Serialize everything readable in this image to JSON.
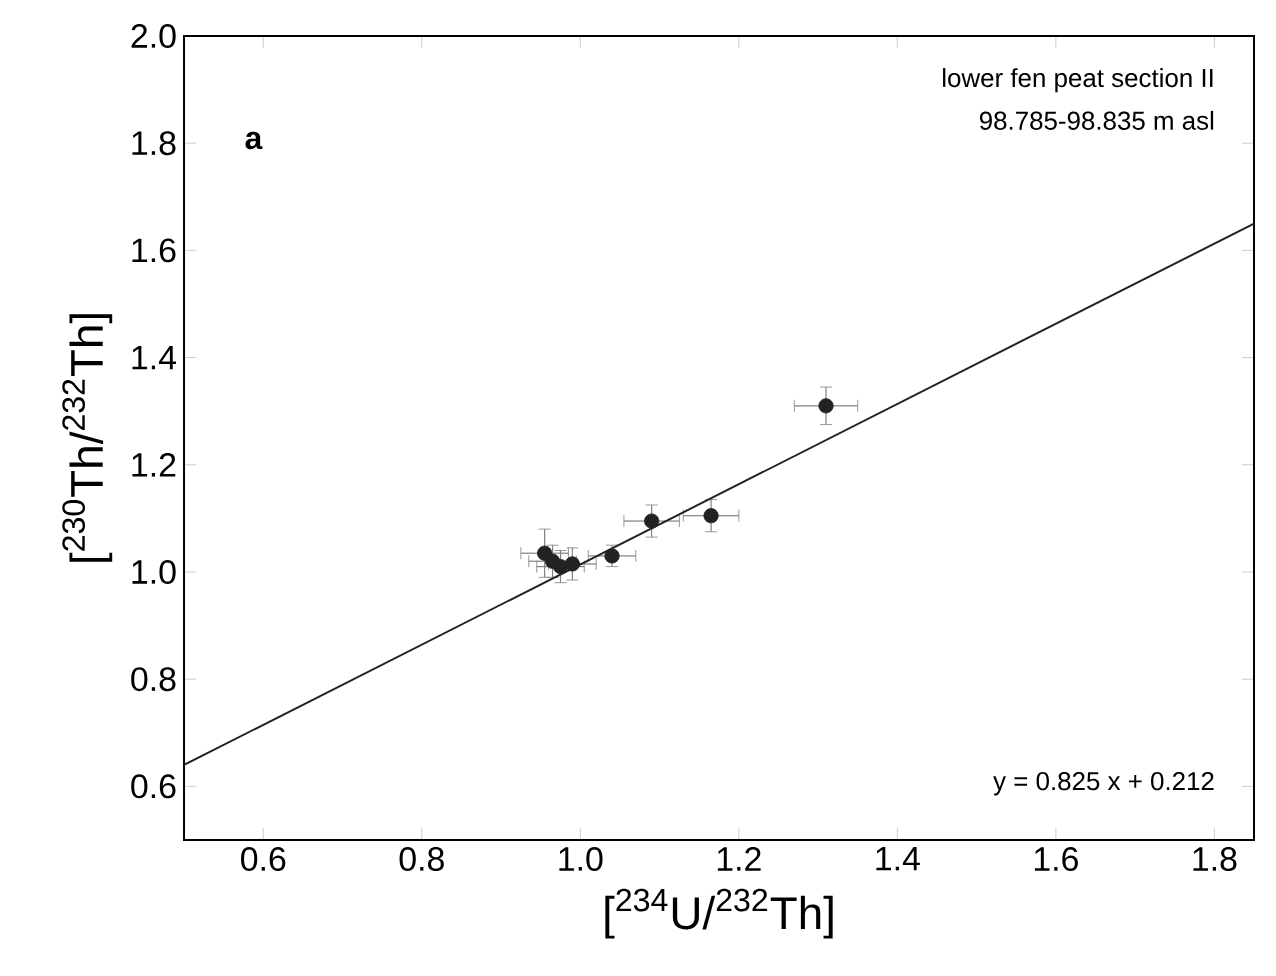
{
  "chart_data": {
    "type": "scatter",
    "xlabel": "[$^{234}$U/$^{232}$Th]",
    "ylabel": "[$^{230}$Th/$^{232}$Th]",
    "xlim": [
      0.5,
      1.85
    ],
    "ylim": [
      0.5,
      2.0
    ],
    "xticks": [
      0.6,
      0.8,
      {
        "value": 1,
        "label": "1.0"
      },
      1.2,
      1.4,
      1.6,
      1.8
    ],
    "yticks": [
      0.6,
      0.8,
      {
        "value": 1,
        "label": "1.0"
      },
      1.2,
      1.4,
      1.6,
      1.8,
      {
        "value": 2,
        "label": "2.0"
      }
    ],
    "annotations": [
      "a",
      "lower fen peat section II",
      "98.785-98.835 m asl",
      "y = 0.825 x + 0.212"
    ],
    "series": [
      {
        "marker": "circle",
        "color": "#222222",
        "x": [
          0.955,
          0.965,
          0.975,
          0.99,
          1.04,
          1.09,
          1.165,
          1.31
        ],
        "values": [
          1.035,
          1.02,
          1.01,
          1.015,
          1.03,
          1.095,
          1.105,
          1.31
        ],
        "errors": [
          0.045,
          0.03,
          0.03,
          0.03,
          0.02,
          0.03,
          0.03,
          0.035
        ],
        "xerrors": [
          0.03,
          0.03,
          0.03,
          0.03,
          0.03,
          0.035,
          0.035,
          0.04
        ]
      },
      {
        "type": "line",
        "marker": "none",
        "color": "#222222",
        "x": [
          0.5,
          1.85
        ],
        "values": [
          0.64,
          1.65
        ]
      }
    ]
  }
}
